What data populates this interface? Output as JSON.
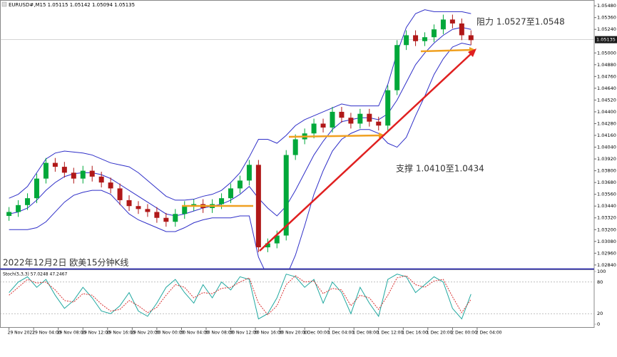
{
  "chart_data": [
    {
      "type": "candlestick",
      "title": "EURUSD#,M15 1.05115 1.05142 1.05094 1.05135",
      "subtitle": "2022年12月2日 欧美15分钟K线",
      "annotations": [
        "阻力 1.0527至1.0548",
        "支撑 1.0410至1.0434"
      ],
      "x": [
        0,
        1.5,
        3,
        4.5,
        6,
        7.5,
        9,
        10.5,
        12,
        13.5,
        15,
        16.5,
        18,
        19.5,
        21,
        22.5,
        24,
        25.5,
        27,
        28.5,
        30,
        31.5,
        33,
        34.5,
        36,
        37.5,
        39,
        40.5,
        42,
        43.5,
        45,
        46.5,
        48,
        49.5,
        51,
        52.5,
        54,
        55.5,
        57,
        58.5,
        60,
        61.5,
        63,
        64.5,
        66,
        67.5,
        69,
        70.5,
        72,
        73.5,
        75
      ],
      "open": [
        1.0334,
        1.0338,
        1.0345,
        1.0352,
        1.0372,
        1.0388,
        1.0384,
        1.0378,
        1.0372,
        1.038,
        1.0374,
        1.0368,
        1.0362,
        1.035,
        1.0344,
        1.0341,
        1.0338,
        1.0332,
        1.0328,
        1.0336,
        1.0344,
        1.0346,
        1.0342,
        1.0346,
        1.0352,
        1.0362,
        1.037,
        1.0386,
        1.0302,
        1.0306,
        1.0314,
        1.0396,
        1.0412,
        1.0418,
        1.0428,
        1.0424,
        1.044,
        1.0434,
        1.0428,
        1.0438,
        1.043,
        1.0426,
        1.0462,
        1.0508,
        1.0518,
        1.0512,
        1.0516,
        1.0524,
        1.0534,
        1.053,
        1.0518
      ],
      "high": [
        1.0343,
        1.035,
        1.0357,
        1.0377,
        1.0393,
        1.0393,
        1.0389,
        1.0383,
        1.0385,
        1.0385,
        1.0379,
        1.0373,
        1.0367,
        1.0355,
        1.0349,
        1.0346,
        1.0343,
        1.0337,
        1.0341,
        1.0349,
        1.0351,
        1.0351,
        1.0351,
        1.0357,
        1.0367,
        1.0375,
        1.0391,
        1.0391,
        1.0311,
        1.0319,
        1.0401,
        1.0417,
        1.0423,
        1.0433,
        1.0433,
        1.0445,
        1.0445,
        1.0439,
        1.0443,
        1.0443,
        1.0435,
        1.0467,
        1.0513,
        1.0523,
        1.0523,
        1.0521,
        1.0529,
        1.0539,
        1.0539,
        1.0535,
        1.0523
      ],
      "low": [
        1.0329,
        1.0333,
        1.034,
        1.0347,
        1.0367,
        1.0379,
        1.0373,
        1.0367,
        1.0367,
        1.0369,
        1.0363,
        1.0357,
        1.0345,
        1.0339,
        1.0336,
        1.0333,
        1.0327,
        1.0323,
        1.0323,
        1.0331,
        1.0339,
        1.0337,
        1.0337,
        1.0341,
        1.0347,
        1.0357,
        1.0365,
        1.0297,
        1.0297,
        1.0301,
        1.0309,
        1.0391,
        1.0407,
        1.0413,
        1.0419,
        1.0419,
        1.0429,
        1.0423,
        1.0423,
        1.0425,
        1.0421,
        1.0421,
        1.0457,
        1.0503,
        1.0507,
        1.0507,
        1.0511,
        1.0519,
        1.0525,
        1.0513,
        1.0508
      ],
      "close": [
        1.0338,
        1.0345,
        1.0352,
        1.0372,
        1.0388,
        1.0384,
        1.0378,
        1.0372,
        1.038,
        1.0374,
        1.0368,
        1.0362,
        1.035,
        1.0344,
        1.0341,
        1.0338,
        1.0332,
        1.0328,
        1.0336,
        1.0344,
        1.0346,
        1.0342,
        1.0346,
        1.0352,
        1.0362,
        1.037,
        1.0386,
        1.0302,
        1.0306,
        1.0314,
        1.0396,
        1.0412,
        1.0418,
        1.0428,
        1.0424,
        1.044,
        1.0434,
        1.0428,
        1.0438,
        1.043,
        1.0426,
        1.0462,
        1.0508,
        1.0518,
        1.0512,
        1.0516,
        1.0524,
        1.0534,
        1.053,
        1.0518,
        1.0513
      ],
      "up_color": "#00a83a",
      "down_color": "#b01818",
      "bands": {
        "color": "#2f2fc8",
        "upper": [
          1.0352,
          1.0356,
          1.0364,
          1.0378,
          1.0392,
          1.0398,
          1.04,
          1.0399,
          1.0398,
          1.0396,
          1.0392,
          1.0388,
          1.0386,
          1.0384,
          1.0378,
          1.037,
          1.0362,
          1.0354,
          1.035,
          1.035,
          1.0351,
          1.0354,
          1.0356,
          1.036,
          1.0368,
          1.0378,
          1.0394,
          1.0412,
          1.0412,
          1.0408,
          1.0416,
          1.0426,
          1.0432,
          1.0436,
          1.044,
          1.0444,
          1.0448,
          1.0446,
          1.0446,
          1.0446,
          1.0446,
          1.0468,
          1.05,
          1.0526,
          1.054,
          1.0544,
          1.0542,
          1.0542,
          1.0542,
          1.0542,
          1.054
        ],
        "middle": [
          1.0336,
          1.0338,
          1.0342,
          1.035,
          1.036,
          1.0368,
          1.0374,
          1.0377,
          1.0378,
          1.0378,
          1.0376,
          1.0372,
          1.0366,
          1.036,
          1.0354,
          1.0348,
          1.0342,
          1.0336,
          1.0334,
          1.0336,
          1.0339,
          1.0342,
          1.0344,
          1.0346,
          1.035,
          1.0356,
          1.0364,
          1.0352,
          1.0342,
          1.0334,
          1.0344,
          1.036,
          1.0378,
          1.0396,
          1.041,
          1.0422,
          1.043,
          1.0432,
          1.0434,
          1.0434,
          1.0432,
          1.0438,
          1.0452,
          1.047,
          1.0488,
          1.05,
          1.051,
          1.0518,
          1.0524,
          1.0526,
          1.0524
        ],
        "lower": [
          1.032,
          1.032,
          1.032,
          1.0322,
          1.0328,
          1.0338,
          1.0348,
          1.0355,
          1.0358,
          1.036,
          1.036,
          1.0356,
          1.0346,
          1.0336,
          1.033,
          1.0326,
          1.0322,
          1.0318,
          1.0318,
          1.0322,
          1.0327,
          1.033,
          1.0332,
          1.0332,
          1.0332,
          1.0334,
          1.0334,
          1.0292,
          1.0272,
          1.026,
          1.0272,
          1.0294,
          1.0324,
          1.0356,
          1.038,
          1.04,
          1.0412,
          1.0418,
          1.0422,
          1.0422,
          1.0418,
          1.0408,
          1.0404,
          1.0414,
          1.0436,
          1.0456,
          1.0478,
          1.0494,
          1.0506,
          1.051,
          1.0508
        ]
      },
      "xlim": [
        -1,
        95
      ],
      "ylim": [
        1.0281,
        1.0551
      ],
      "yticks": [
        {
          "value": 1.0548,
          "label": "1.05480"
        },
        {
          "value": 1.0536,
          "label": "1.05360"
        },
        {
          "value": 1.0524,
          "label": "1.05240"
        },
        {
          "value": 1.05,
          "label": "1.05000"
        },
        {
          "value": 1.0488,
          "label": "1.04880"
        },
        {
          "value": 1.0476,
          "label": "1.04760"
        },
        {
          "value": 1.0464,
          "label": "1.04640"
        },
        {
          "value": 1.0452,
          "label": "1.04520"
        },
        {
          "value": 1.044,
          "label": "1.04400"
        },
        {
          "value": 1.0428,
          "label": "1.04280"
        },
        {
          "value": 1.0416,
          "label": "1.04160"
        },
        {
          "value": 1.0404,
          "label": "1.04040"
        },
        {
          "value": 1.0392,
          "label": "1.03920"
        },
        {
          "value": 1.038,
          "label": "1.03800"
        },
        {
          "value": 1.0368,
          "label": "1.03680"
        },
        {
          "value": 1.0356,
          "label": "1.03560"
        },
        {
          "value": 1.0344,
          "label": "1.03440"
        },
        {
          "value": 1.0332,
          "label": "1.03320"
        },
        {
          "value": 1.032,
          "label": "1.03200"
        },
        {
          "value": 1.0308,
          "label": "1.03080"
        },
        {
          "value": 1.0296,
          "label": "1.02960"
        },
        {
          "value": 1.0284,
          "label": "1.02840"
        }
      ],
      "current_price": {
        "value": 1.05135,
        "label": "1.05135"
      }
    },
    {
      "type": "line",
      "title": "Stoch(5,3,3) 57.0248 47.2467",
      "series": [
        {
          "color": "#20a8a0",
          "values": [
            60,
            80,
            90,
            70,
            85,
            55,
            30,
            45,
            70,
            50,
            25,
            20,
            35,
            60,
            25,
            15,
            40,
            70,
            85,
            60,
            40,
            75,
            50,
            80,
            65,
            90,
            85,
            10,
            20,
            50,
            95,
            90,
            70,
            85,
            40,
            80,
            60,
            20,
            70,
            40,
            15,
            85,
            95,
            90,
            60,
            75,
            90,
            80,
            30,
            10,
            57
          ]
        },
        {
          "color": "#d83030",
          "dashed": true,
          "values": [
            55,
            70,
            85,
            78,
            80,
            65,
            45,
            42,
            58,
            55,
            38,
            25,
            28,
            45,
            35,
            22,
            32,
            55,
            75,
            70,
            50,
            60,
            58,
            68,
            70,
            80,
            88,
            40,
            18,
            35,
            75,
            92,
            80,
            82,
            58,
            68,
            65,
            35,
            55,
            50,
            28,
            55,
            88,
            92,
            75,
            70,
            82,
            85,
            52,
            22,
            47
          ]
        }
      ],
      "ylim": [
        0,
        100
      ],
      "yticks": [
        100,
        80,
        20,
        0
      ],
      "xticks": [
        {
          "value": 0,
          "label": "29 Nov 2022"
        },
        {
          "value": 4,
          "label": "29 Nov 04:00"
        },
        {
          "value": 8,
          "label": "29 Nov 08:00"
        },
        {
          "value": 12,
          "label": "29 Nov 12:00"
        },
        {
          "value": 16,
          "label": "29 Nov 16:00"
        },
        {
          "value": 20,
          "label": "29 Nov 20:00"
        },
        {
          "value": 24,
          "label": "30 Nov 00:00"
        },
        {
          "value": 28,
          "label": "30 Nov 04:00"
        },
        {
          "value": 32,
          "label": "30 Nov 08:00"
        },
        {
          "value": 36,
          "label": "30 Nov 12:00"
        },
        {
          "value": 40,
          "label": "30 Nov 16:00"
        },
        {
          "value": 44,
          "label": "30 Nov 20:00"
        },
        {
          "value": 48,
          "label": "1 Dec 00:00"
        },
        {
          "value": 52,
          "label": "1 Dec 04:00"
        },
        {
          "value": 56,
          "label": "1 Dec 08:00"
        },
        {
          "value": 60,
          "label": "1 Dec 12:00"
        },
        {
          "value": 64,
          "label": "1 Dec 16:00"
        },
        {
          "value": 68,
          "label": "1 Dec 20:00"
        },
        {
          "value": 72,
          "label": "2 Dec 00:00"
        },
        {
          "value": 76,
          "label": "2 Dec 04:00"
        }
      ]
    }
  ]
}
